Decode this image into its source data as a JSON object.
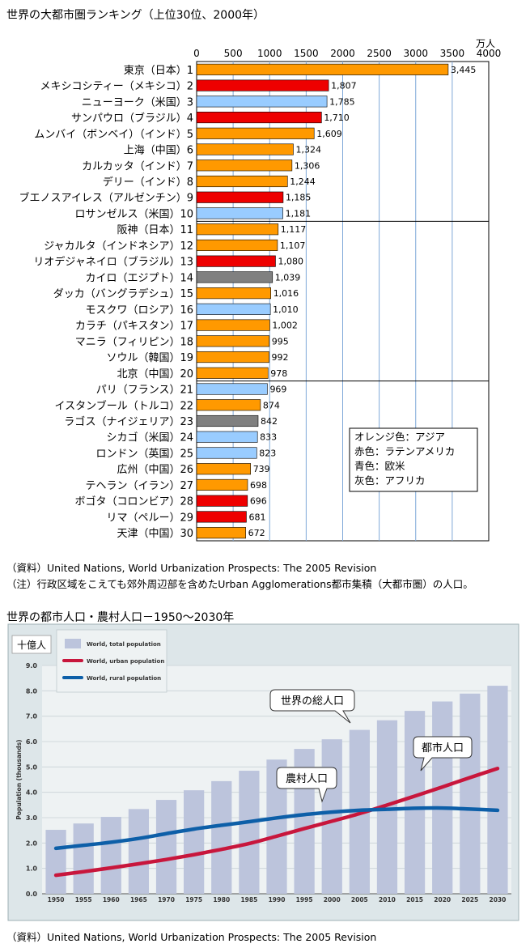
{
  "chart_data": [
    {
      "type": "bar",
      "orientation": "horizontal",
      "title": "世界の大都市圏ランキング（上位30位、2000年）",
      "unit_label": "万人",
      "xlim": [
        0,
        4000
      ],
      "x_ticks": [
        "0",
        "500",
        "1000",
        "1500",
        "2000",
        "2500",
        "3000",
        "3500",
        "4000"
      ],
      "grid": true,
      "categories": [
        "東京（日本）1",
        "メキシコシティー（メキシコ）2",
        "ニューヨーク（米国）3",
        "サンパウロ（ブラジル）4",
        "ムンバイ（ボンベイ）（インド）5",
        "上海（中国）6",
        "カルカッタ（インド）7",
        "デリー（インド）8",
        "ブエノスアイレス（アルゼンチン）9",
        "ロサンゼルス（米国）10",
        "阪神（日本）11",
        "ジャカルタ（インドネシア）12",
        "リオデジャネイロ（ブラジル）13",
        "カイロ（エジプト）14",
        "ダッカ（バングラデシュ）15",
        "モスクワ（ロシア）16",
        "カラチ（パキスタン）17",
        "マニラ（フィリピン）18",
        "ソウル（韓国）19",
        "北京（中国）20",
        "パリ（フランス）21",
        "イスタンブール（トルコ）22",
        "ラゴス（ナイジェリア）23",
        "シカゴ（米国）24",
        "ロンドン（英国）25",
        "広州（中国）26",
        "テヘラン（イラン）27",
        "ボゴタ（コロンビア）28",
        "リマ（ペルー）29",
        "天津（中国）30"
      ],
      "values": [
        3445,
        1807,
        1785,
        1710,
        1609,
        1324,
        1306,
        1244,
        1185,
        1181,
        1117,
        1107,
        1080,
        1039,
        1016,
        1010,
        1002,
        995,
        992,
        978,
        969,
        874,
        842,
        833,
        823,
        739,
        698,
        696,
        681,
        672
      ],
      "value_labels": [
        "3,445",
        "1,807",
        "1,785",
        "1,710",
        "1,609",
        "1,324",
        "1,306",
        "1,244",
        "1,185",
        "1,181",
        "1,117",
        "1,107",
        "1,080",
        "1,039",
        "1,016",
        "1,010",
        "1,002",
        "995",
        "992",
        "978",
        "969",
        "874",
        "842",
        "833",
        "823",
        "739",
        "698",
        "696",
        "681",
        "672"
      ],
      "regions": [
        "asia",
        "latin",
        "western",
        "latin",
        "asia",
        "asia",
        "asia",
        "asia",
        "latin",
        "western",
        "asia",
        "asia",
        "latin",
        "africa",
        "asia",
        "western",
        "asia",
        "asia",
        "asia",
        "asia",
        "western",
        "asia",
        "africa",
        "western",
        "western",
        "asia",
        "asia",
        "latin",
        "latin",
        "asia"
      ],
      "region_colors": {
        "asia": "#ff9900",
        "latin": "#ee0000",
        "western": "#99ccff",
        "africa": "#808080"
      },
      "legend": [
        "オレンジ色：アジア",
        "赤色：ラテンアメリカ",
        "青色：欧米",
        "灰色：アフリカ"
      ],
      "legend_position": "bottom-right"
    },
    {
      "type": "bar+line",
      "title": "世界の都市人口・農村人口－1950～2030年",
      "unit_label": "十億人",
      "ylabel": "Population (thousands)",
      "ylim": [
        0,
        9
      ],
      "y_ticks": [
        "0.0",
        "1.0",
        "2.0",
        "3.0",
        "4.0",
        "5.0",
        "6.0",
        "7.0",
        "8.0",
        "9.0"
      ],
      "categories": [
        "1950",
        "1955",
        "1960",
        "1965",
        "1970",
        "1975",
        "1980",
        "1985",
        "1990",
        "1995",
        "2000",
        "2005",
        "2010",
        "2015",
        "2020",
        "2025",
        "2030"
      ],
      "series": [
        {
          "name": "World, total population",
          "type": "bar",
          "color": "#bcc4dc",
          "values": [
            2.52,
            2.77,
            3.03,
            3.34,
            3.7,
            4.08,
            4.44,
            4.85,
            5.29,
            5.71,
            6.09,
            6.46,
            6.84,
            7.21,
            7.58,
            7.89,
            8.2
          ]
        },
        {
          "name": "World, urban population",
          "type": "line",
          "color": "#c8163c",
          "values": [
            0.73,
            0.87,
            1.02,
            1.18,
            1.35,
            1.54,
            1.75,
            1.98,
            2.27,
            2.57,
            2.86,
            3.16,
            3.5,
            3.85,
            4.21,
            4.58,
            4.94
          ]
        },
        {
          "name": "World, rural population",
          "type": "line",
          "color": "#0d5fa8",
          "values": [
            1.79,
            1.91,
            2.03,
            2.18,
            2.37,
            2.55,
            2.7,
            2.84,
            2.99,
            3.12,
            3.22,
            3.29,
            3.33,
            3.37,
            3.38,
            3.34,
            3.29
          ]
        }
      ],
      "callouts": [
        "世界の総人口",
        "都市人口",
        "農村人口"
      ],
      "legend_position": "top-left"
    }
  ],
  "sources": {
    "chart1_source": "（資料）United Nations, World Urbanization Prospects: The 2005 Revision",
    "chart1_note": "（注）行政区域をこえても郊外周辺部を含めたUrban Agglomerations都市集積（大都市圏）の人口。",
    "chart2_source": "（資料）United Nations, World Urbanization Prospects: The 2005 Revision"
  }
}
